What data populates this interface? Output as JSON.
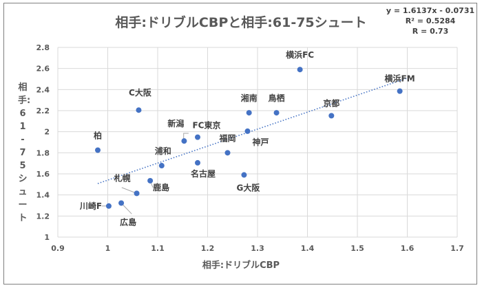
{
  "chart_data": {
    "type": "scatter",
    "title": "相手:ドリブルCBPと相手:61-75シュート",
    "xlabel": "相手:ドリブルCBP",
    "ylabel": "相手:61-75シュート",
    "xlim": [
      0.9,
      1.7
    ],
    "ylim": [
      1,
      2.8
    ],
    "xticks": [
      "0.9",
      "1",
      "1.1",
      "1.2",
      "1.3",
      "1.4",
      "1.5",
      "1.6",
      "1.7"
    ],
    "yticks": [
      "1",
      "1.2",
      "1.4",
      "1.6",
      "1.8",
      "2",
      "2.2",
      "2.4",
      "2.6",
      "2.8"
    ],
    "grid": true,
    "trendline": {
      "type": "linear",
      "slope": 1.6137,
      "intercept": -0.0731,
      "equation": "y = 1.6137x - 0.0731",
      "r2": "R² = 0.5284",
      "r": "R = 0.73"
    },
    "points": [
      {
        "label": "横浜FC",
        "x": 1.385,
        "y": 2.59
      },
      {
        "label": "横浜FM",
        "x": 1.585,
        "y": 2.385
      },
      {
        "label": "C大阪",
        "x": 1.062,
        "y": 2.205
      },
      {
        "label": "湘南",
        "x": 1.283,
        "y": 2.18
      },
      {
        "label": "鳥栖",
        "x": 1.338,
        "y": 2.18
      },
      {
        "label": "京都",
        "x": 1.448,
        "y": 2.152
      },
      {
        "label": "新潟",
        "x": 1.153,
        "y": 1.912
      },
      {
        "label": "FC東京",
        "x": 1.18,
        "y": 1.948
      },
      {
        "label": "神戸",
        "x": 1.28,
        "y": 2.005
      },
      {
        "label": "柏",
        "x": 0.98,
        "y": 1.825
      },
      {
        "label": "福岡",
        "x": 1.24,
        "y": 1.8
      },
      {
        "label": "浦和",
        "x": 1.108,
        "y": 1.678
      },
      {
        "label": "名古屋",
        "x": 1.18,
        "y": 1.705
      },
      {
        "label": "G大阪",
        "x": 1.273,
        "y": 1.59
      },
      {
        "label": "鹿島",
        "x": 1.085,
        "y": 1.535
      },
      {
        "label": "札幌",
        "x": 1.058,
        "y": 1.415
      },
      {
        "label": "広島",
        "x": 1.027,
        "y": 1.323
      },
      {
        "label": "川崎F",
        "x": 1.002,
        "y": 1.295
      }
    ]
  }
}
